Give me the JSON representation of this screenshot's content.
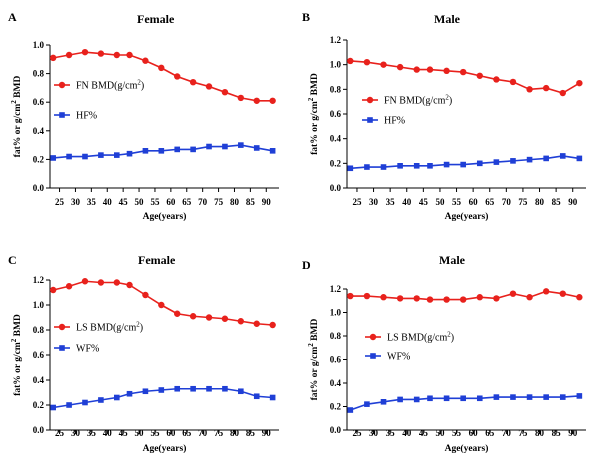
{
  "chart_data": [
    {
      "type": "line",
      "panel_label": "A",
      "title": "Female",
      "xlabel": "Age(years)",
      "ylabel_parts": [
        "fat% or g/cm",
        "2",
        " BMD"
      ],
      "xlim": [
        22,
        94
      ],
      "ylim": [
        0,
        1.0
      ],
      "xticks": [
        25,
        30,
        35,
        40,
        45,
        50,
        55,
        60,
        65,
        70,
        75,
        80,
        85,
        90
      ],
      "yticks": [
        "0.0",
        "0.2",
        "0.4",
        "0.6",
        "0.8",
        "1.0"
      ],
      "ytick_values": [
        0,
        0.2,
        0.4,
        0.6,
        0.8,
        1.0
      ],
      "x": [
        23,
        28,
        33,
        38,
        43,
        47,
        52,
        57,
        62,
        67,
        72,
        77,
        82,
        87,
        92
      ],
      "legend_position": "top-left",
      "series": [
        {
          "name": "FN BMD(g/cm",
          "name_sup": "2",
          "name_tail": ")",
          "color": "#e8211c",
          "marker": "circle",
          "values": [
            0.91,
            0.93,
            0.95,
            0.94,
            0.93,
            0.93,
            0.89,
            0.84,
            0.78,
            0.74,
            0.71,
            0.67,
            0.63,
            0.61,
            0.61
          ]
        },
        {
          "name": "HF%",
          "name_sup": "",
          "name_tail": "",
          "color": "#1f3fd6",
          "marker": "square",
          "values": [
            0.21,
            0.22,
            0.22,
            0.23,
            0.23,
            0.24,
            0.26,
            0.26,
            0.27,
            0.27,
            0.29,
            0.29,
            0.3,
            0.28,
            0.26
          ]
        }
      ]
    },
    {
      "type": "line",
      "panel_label": "B",
      "title": "Male",
      "xlabel": "Age(years)",
      "ylabel_parts": [
        "fat% or g/cm",
        "2",
        " BMD"
      ],
      "xlim": [
        22,
        94
      ],
      "ylim": [
        0,
        1.2
      ],
      "xticks": [
        25,
        30,
        35,
        40,
        45,
        50,
        55,
        60,
        65,
        70,
        75,
        80,
        85,
        90
      ],
      "yticks": [
        "0.0",
        "0.2",
        "0.4",
        "0.6",
        "0.8",
        "1.0",
        "1.2"
      ],
      "ytick_values": [
        0,
        0.2,
        0.4,
        0.6,
        0.8,
        1.0,
        1.2
      ],
      "x": [
        23,
        28,
        33,
        38,
        43,
        47,
        52,
        57,
        62,
        67,
        72,
        77,
        82,
        87,
        92
      ],
      "legend_position": "center-left",
      "series": [
        {
          "name": "FN BMD(g/cm",
          "name_sup": "2",
          "name_tail": ")",
          "color": "#e8211c",
          "marker": "circle",
          "values": [
            1.03,
            1.02,
            1.0,
            0.98,
            0.96,
            0.96,
            0.95,
            0.94,
            0.91,
            0.88,
            0.86,
            0.8,
            0.81,
            0.77,
            0.85
          ]
        },
        {
          "name": "HF%",
          "name_sup": "",
          "name_tail": "",
          "color": "#1f3fd6",
          "marker": "square",
          "values": [
            0.16,
            0.17,
            0.17,
            0.18,
            0.18,
            0.18,
            0.19,
            0.19,
            0.2,
            0.21,
            0.22,
            0.23,
            0.24,
            0.26,
            0.24
          ]
        }
      ]
    },
    {
      "type": "line",
      "panel_label": "C",
      "title": "Female",
      "xlabel": "Age(years)",
      "ylabel_parts": [
        "fat% or g/cm",
        "2",
        " BMD"
      ],
      "xlim": [
        22,
        94
      ],
      "ylim": [
        0,
        1.2
      ],
      "xticks": [
        25,
        30,
        35,
        40,
        45,
        50,
        55,
        60,
        65,
        70,
        75,
        80,
        85,
        90
      ],
      "yticks": [
        "0.0",
        "0.2",
        "0.4",
        "0.6",
        "0.8",
        "1.0",
        "1.2"
      ],
      "ytick_values": [
        0,
        0.2,
        0.4,
        0.6,
        0.8,
        1.0,
        1.2
      ],
      "x": [
        23,
        28,
        33,
        38,
        43,
        47,
        52,
        57,
        62,
        67,
        72,
        77,
        82,
        87,
        92
      ],
      "legend_position": "center-left",
      "series": [
        {
          "name": "LS BMD(g/cm",
          "name_sup": "2",
          "name_tail": ")",
          "color": "#e8211c",
          "marker": "circle",
          "values": [
            1.12,
            1.15,
            1.19,
            1.18,
            1.18,
            1.16,
            1.08,
            1.0,
            0.93,
            0.91,
            0.9,
            0.89,
            0.87,
            0.85,
            0.84
          ]
        },
        {
          "name": "WF%",
          "name_sup": "",
          "name_tail": "",
          "color": "#1f3fd6",
          "marker": "square",
          "values": [
            0.18,
            0.2,
            0.22,
            0.24,
            0.26,
            0.29,
            0.31,
            0.32,
            0.33,
            0.33,
            0.33,
            0.33,
            0.31,
            0.27,
            0.26
          ]
        }
      ]
    },
    {
      "type": "line",
      "panel_label": "D",
      "title": "Male",
      "xlabel": "Age(years)",
      "ylabel_parts": [
        "fat% or g/cm",
        "2",
        " BMD"
      ],
      "xlim": [
        22,
        94
      ],
      "ylim": [
        0,
        1.2
      ],
      "xticks": [
        25,
        30,
        35,
        40,
        45,
        50,
        55,
        60,
        65,
        70,
        75,
        80,
        85,
        90
      ],
      "yticks": [
        "0.0",
        "0.2",
        "0.4",
        "0.6",
        "0.8",
        "1.0",
        "1.2"
      ],
      "ytick_values": [
        0,
        0.2,
        0.4,
        0.6,
        0.8,
        1.0,
        1.2
      ],
      "x": [
        23,
        28,
        33,
        38,
        43,
        47,
        52,
        57,
        62,
        67,
        72,
        77,
        82,
        87,
        92
      ],
      "legend_position": "center-left",
      "series": [
        {
          "name": "LS BMD(g/cm",
          "name_sup": "2",
          "name_tail": ")",
          "color": "#e8211c",
          "marker": "circle",
          "values": [
            1.14,
            1.14,
            1.13,
            1.12,
            1.12,
            1.11,
            1.11,
            1.11,
            1.13,
            1.12,
            1.16,
            1.13,
            1.18,
            1.16,
            1.13
          ]
        },
        {
          "name": "WF%",
          "name_sup": "",
          "name_tail": "",
          "color": "#1f3fd6",
          "marker": "square",
          "values": [
            0.17,
            0.22,
            0.24,
            0.26,
            0.26,
            0.27,
            0.27,
            0.27,
            0.27,
            0.28,
            0.28,
            0.28,
            0.28,
            0.28,
            0.29
          ]
        }
      ]
    }
  ]
}
